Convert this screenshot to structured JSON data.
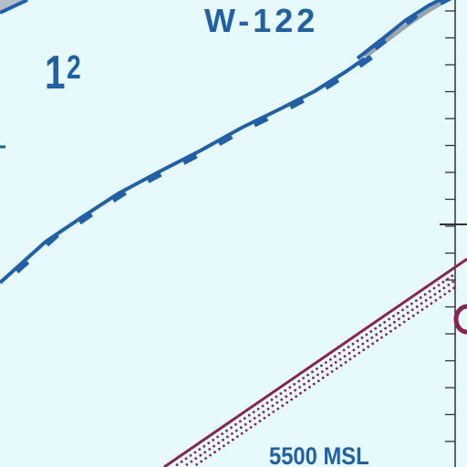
{
  "chart": {
    "colors": {
      "background": "#e6fafd",
      "airspace_blue": "#2060a8",
      "restricted_maroon": "#8a2254",
      "grid_dark": "#333333",
      "gray_band": "#9aa4ae"
    },
    "labels": {
      "area_designation": "W-122",
      "altitude": "5500 MSL",
      "region_number_main": "1",
      "region_number_sup": "2"
    }
  }
}
